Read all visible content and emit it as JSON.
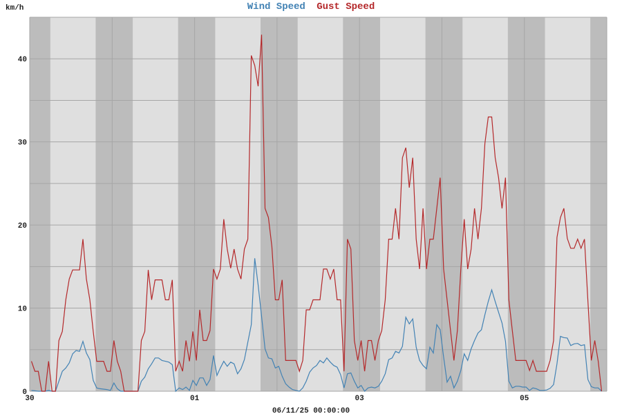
{
  "chart_data": {
    "type": "line",
    "title_parts": [
      {
        "text": "Wind Speed",
        "color": "#4282b4"
      },
      {
        "text": "Gust Speed",
        "color": "#b4282a"
      }
    ],
    "ylabel": "km/h",
    "xlabel": "06/11/25 00:00:00",
    "ylim": [
      0,
      45
    ],
    "y_ticks": [
      0,
      10,
      20,
      30,
      40
    ],
    "y_grid_step": 5,
    "x_range_days": 7,
    "x_tick_labels": [
      {
        "label": "30",
        "day": 0
      },
      {
        "label": "01",
        "day": 2
      },
      {
        "label": "03",
        "day": 4
      },
      {
        "label": "05",
        "day": 6
      }
    ],
    "grid": true,
    "night_shading": {
      "sunrise_hour": 6.0,
      "sunset_hour": 19.2
    },
    "colors": {
      "plot_bg": "#dfdfdf",
      "night_bg": "#bcbcbc",
      "grid": "#a6a6a6"
    },
    "sample_interval_hours": 1,
    "series": [
      {
        "name": "Wind Speed",
        "color": "#4282b4",
        "values": [
          0.1,
          0.05,
          0,
          0,
          0,
          0.1,
          0,
          0,
          1.2,
          2.4,
          2.8,
          3.4,
          4.5,
          4.9,
          4.8,
          6,
          4.6,
          3.8,
          1.3,
          0.4,
          0.3,
          0.25,
          0.2,
          0.1,
          1,
          0.3,
          0,
          0,
          0,
          0,
          0,
          0,
          1.2,
          1.7,
          2.7,
          3.3,
          4,
          4,
          3.7,
          3.6,
          3.5,
          3.2,
          0,
          0.4,
          0.2,
          0.5,
          0.1,
          1.3,
          0.7,
          1.6,
          1.6,
          0.7,
          1.4,
          4.3,
          1.9,
          2.8,
          3.6,
          3,
          3.5,
          3.3,
          2.1,
          2.7,
          3.8,
          5.9,
          8,
          16,
          12.8,
          9,
          5.1,
          4,
          3.9,
          2.8,
          3,
          1.8,
          0.9,
          0.5,
          0.2,
          0.1,
          0,
          0.4,
          1.2,
          2.3,
          2.8,
          3.1,
          3.7,
          3.4,
          4,
          3.5,
          3.1,
          2.9,
          2,
          0.4,
          2.1,
          2.2,
          1.2,
          0.4,
          0.7,
          0,
          0.4,
          0.5,
          0.4,
          0.6,
          1.2,
          2.1,
          3.8,
          4,
          4.8,
          4.6,
          5.4,
          8.9,
          8.1,
          8.7,
          5.3,
          3.7,
          3.1,
          2.7,
          5.3,
          4.6,
          8,
          7.4,
          4.1,
          1.1,
          1.8,
          0.4,
          1.2,
          2.5,
          4.5,
          3.7,
          5.1,
          6.1,
          7,
          7.4,
          9.2,
          10.8,
          12.2,
          10.8,
          9.5,
          8.2,
          6,
          1.2,
          0.4,
          0.6,
          0.6,
          0.5,
          0.5,
          0.1,
          0.4,
          0.3,
          0.1,
          0.1,
          0.15,
          0.35,
          0.8,
          3.3,
          6.6,
          6.45,
          6.4,
          5.5,
          5.7,
          5.75,
          5.5,
          5.6,
          1.4,
          0.55,
          0.4,
          0.4,
          0
        ]
      },
      {
        "name": "Gust Speed",
        "color": "#b4282a",
        "values": [
          3.6,
          2.4,
          2.4,
          0,
          0,
          3.6,
          0,
          0,
          6.1,
          7.2,
          11,
          13.5,
          14.6,
          14.6,
          14.6,
          18.3,
          13.5,
          11,
          7.2,
          3.6,
          3.6,
          3.6,
          2.4,
          2.4,
          6.1,
          3.6,
          2.4,
          0,
          0,
          0,
          0,
          0,
          6.1,
          7.2,
          14.6,
          11,
          13.4,
          13.4,
          13.4,
          11,
          11,
          13.4,
          2.4,
          3.6,
          2.4,
          6.1,
          3.6,
          7.2,
          3.7,
          9.8,
          6.1,
          6.1,
          7.3,
          14.7,
          13.5,
          14.7,
          20.7,
          17.1,
          14.8,
          17.1,
          14.7,
          13.5,
          17.1,
          18.3,
          40.4,
          39.2,
          36.7,
          42.9,
          22,
          20.9,
          17.4,
          11,
          11,
          13.4,
          3.7,
          3.7,
          3.7,
          3.7,
          2.4,
          3.7,
          9.8,
          9.8,
          11,
          11,
          11,
          14.7,
          14.7,
          13.5,
          14.7,
          11,
          11,
          2.4,
          18.3,
          17.1,
          6.1,
          3.7,
          6.1,
          2.4,
          6.1,
          6.1,
          3.7,
          6.1,
          7.3,
          11,
          18.3,
          18.3,
          22,
          18.3,
          28.1,
          29.3,
          24.5,
          28.1,
          18.3,
          14.7,
          22,
          14.7,
          18.3,
          18.3,
          22,
          25.7,
          14.7,
          11,
          7.3,
          3.7,
          7.3,
          14.7,
          20.7,
          14.7,
          17.1,
          22,
          18.3,
          22,
          29.8,
          33,
          33,
          28.1,
          25.7,
          22,
          25.7,
          11,
          7.3,
          3.7,
          3.7,
          3.7,
          3.7,
          2.5,
          3.7,
          2.4,
          2.4,
          2.4,
          2.4,
          3.7,
          6.1,
          18.5,
          20.9,
          22,
          18.4,
          17.2,
          17.2,
          18.3,
          17.2,
          18.3,
          10.8,
          3.7,
          6.1,
          3.6,
          0
        ]
      }
    ]
  }
}
